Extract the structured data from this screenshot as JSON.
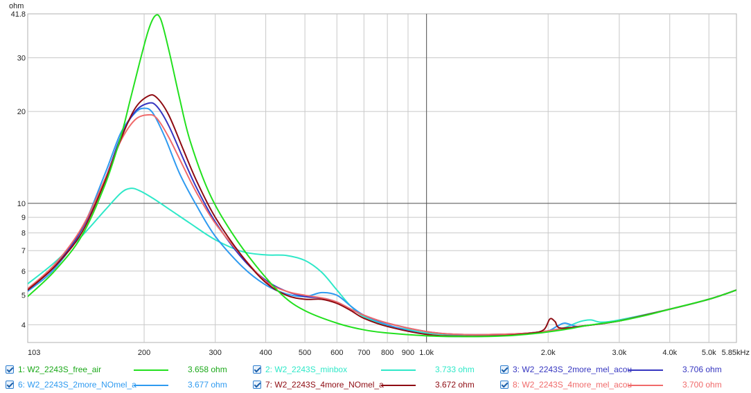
{
  "chart_data": {
    "type": "line",
    "ylabel": "ohm",
    "xlabel": "",
    "xunit": "kHz",
    "xscale": "log",
    "yscale": "log",
    "xlim": [
      103,
      5850
    ],
    "ylim": [
      3.5,
      41.8
    ],
    "x_ticks": [
      {
        "v": 103,
        "label": "103"
      },
      {
        "v": 200,
        "label": "200"
      },
      {
        "v": 300,
        "label": "300"
      },
      {
        "v": 400,
        "label": "400"
      },
      {
        "v": 500,
        "label": "500"
      },
      {
        "v": 600,
        "label": "600"
      },
      {
        "v": 700,
        "label": "700"
      },
      {
        "v": 800,
        "label": "800"
      },
      {
        "v": 900,
        "label": "900"
      },
      {
        "v": 1000,
        "label": "1.0k"
      },
      {
        "v": 2000,
        "label": "2.0k"
      },
      {
        "v": 3000,
        "label": "3.0k"
      },
      {
        "v": 4000,
        "label": "4.0k"
      },
      {
        "v": 5000,
        "label": "5.0k"
      },
      {
        "v": 5850,
        "label": "5.85kHz"
      }
    ],
    "y_ticks": [
      {
        "v": 4,
        "label": "4"
      },
      {
        "v": 5,
        "label": "5"
      },
      {
        "v": 6,
        "label": "6"
      },
      {
        "v": 7,
        "label": "7"
      },
      {
        "v": 8,
        "label": "8"
      },
      {
        "v": 9,
        "label": "9"
      },
      {
        "v": 10,
        "label": "10"
      },
      {
        "v": 20,
        "label": "20"
      },
      {
        "v": 30,
        "label": "30"
      },
      {
        "v": 41.8,
        "label": "41.8"
      }
    ],
    "grid": true,
    "cursor_x": 1000,
    "cursor_y": 10,
    "series": [
      {
        "name": "1: W2_2243S_free_air",
        "value": "3.658 ohm",
        "color": "#22e01e",
        "points": [
          [
            103,
            4.95
          ],
          [
            120,
            6.0
          ],
          [
            140,
            7.8
          ],
          [
            160,
            11.5
          ],
          [
            175,
            16.5
          ],
          [
            185,
            22
          ],
          [
            195,
            29
          ],
          [
            205,
            37
          ],
          [
            213,
            41.2
          ],
          [
            220,
            40
          ],
          [
            230,
            32
          ],
          [
            245,
            22
          ],
          [
            260,
            16
          ],
          [
            290,
            10.8
          ],
          [
            330,
            8.0
          ],
          [
            380,
            6.2
          ],
          [
            440,
            5.0
          ],
          [
            500,
            4.45
          ],
          [
            600,
            4.05
          ],
          [
            700,
            3.85
          ],
          [
            800,
            3.76
          ],
          [
            1000,
            3.68
          ],
          [
            1200,
            3.66
          ],
          [
            1500,
            3.67
          ],
          [
            1800,
            3.73
          ],
          [
            2200,
            3.86
          ],
          [
            2500,
            3.98
          ],
          [
            3000,
            4.12
          ],
          [
            3500,
            4.3
          ],
          [
            4000,
            4.5
          ],
          [
            5000,
            4.85
          ],
          [
            5850,
            5.2
          ]
        ]
      },
      {
        "name": "2: W2_2243S_minbox",
        "value": "3.733 ohm",
        "color": "#2ee8c8",
        "points": [
          [
            103,
            5.45
          ],
          [
            120,
            6.4
          ],
          [
            140,
            7.8
          ],
          [
            160,
            9.5
          ],
          [
            175,
            10.8
          ],
          [
            185,
            11.2
          ],
          [
            195,
            11.0
          ],
          [
            210,
            10.4
          ],
          [
            230,
            9.6
          ],
          [
            260,
            8.6
          ],
          [
            300,
            7.6
          ],
          [
            350,
            6.95
          ],
          [
            400,
            6.78
          ],
          [
            450,
            6.75
          ],
          [
            500,
            6.5
          ],
          [
            550,
            5.95
          ],
          [
            600,
            5.2
          ],
          [
            650,
            4.6
          ],
          [
            700,
            4.25
          ],
          [
            800,
            3.98
          ],
          [
            900,
            3.86
          ],
          [
            1000,
            3.76
          ],
          [
            1200,
            3.7
          ],
          [
            1500,
            3.7
          ],
          [
            1800,
            3.76
          ],
          [
            2000,
            3.82
          ],
          [
            2200,
            3.92
          ],
          [
            2400,
            4.1
          ],
          [
            2550,
            4.15
          ],
          [
            2700,
            4.08
          ],
          [
            3000,
            4.15
          ],
          [
            4000,
            4.5
          ],
          [
            5000,
            4.85
          ],
          [
            5850,
            5.2
          ]
        ]
      },
      {
        "name": "3: W2_2243S_2more_mel_acou",
        "value": "3.706 ohm",
        "color": "#3535c0",
        "points": [
          [
            103,
            5.2
          ],
          [
            120,
            6.2
          ],
          [
            140,
            8.2
          ],
          [
            160,
            12.0
          ],
          [
            175,
            16.5
          ],
          [
            190,
            20.0
          ],
          [
            205,
            21.3
          ],
          [
            215,
            20.8
          ],
          [
            230,
            18.0
          ],
          [
            250,
            14.0
          ],
          [
            270,
            11.2
          ],
          [
            300,
            8.7
          ],
          [
            350,
            6.6
          ],
          [
            400,
            5.6
          ],
          [
            450,
            5.15
          ],
          [
            500,
            4.95
          ],
          [
            550,
            4.9
          ],
          [
            600,
            4.75
          ],
          [
            650,
            4.5
          ],
          [
            700,
            4.3
          ],
          [
            800,
            4.05
          ],
          [
            1000,
            3.8
          ],
          [
            1200,
            3.72
          ],
          [
            1500,
            3.72
          ],
          [
            1800,
            3.76
          ],
          [
            2000,
            3.82
          ],
          [
            2200,
            3.9
          ],
          [
            2500,
            3.98
          ],
          [
            3000,
            4.12
          ],
          [
            4000,
            4.5
          ],
          [
            5000,
            4.85
          ],
          [
            5850,
            5.2
          ]
        ]
      },
      {
        "name": "6: W2_2243S_2more_NOmel_a",
        "value": "3.677 ohm",
        "color": "#2e9af0",
        "points": [
          [
            103,
            5.15
          ],
          [
            120,
            6.1
          ],
          [
            140,
            8.2
          ],
          [
            160,
            12.5
          ],
          [
            175,
            17.0
          ],
          [
            190,
            19.8
          ],
          [
            200,
            20.5
          ],
          [
            210,
            19.8
          ],
          [
            225,
            16.5
          ],
          [
            245,
            12.5
          ],
          [
            270,
            9.8
          ],
          [
            300,
            7.8
          ],
          [
            350,
            6.2
          ],
          [
            400,
            5.4
          ],
          [
            450,
            5.05
          ],
          [
            500,
            4.95
          ],
          [
            550,
            5.1
          ],
          [
            600,
            5.0
          ],
          [
            650,
            4.6
          ],
          [
            700,
            4.3
          ],
          [
            800,
            4.0
          ],
          [
            1000,
            3.72
          ],
          [
            1200,
            3.66
          ],
          [
            1500,
            3.68
          ],
          [
            1800,
            3.74
          ],
          [
            2000,
            3.82
          ],
          [
            2100,
            3.95
          ],
          [
            2200,
            4.05
          ],
          [
            2350,
            3.95
          ],
          [
            2500,
            3.98
          ],
          [
            3000,
            4.12
          ],
          [
            4000,
            4.5
          ],
          [
            5000,
            4.85
          ],
          [
            5850,
            5.2
          ]
        ]
      },
      {
        "name": "7: W2_2243S_4more_NOmel_a",
        "value": "3.672 ohm",
        "color": "#8e0b12",
        "points": [
          [
            103,
            5.2
          ],
          [
            120,
            6.2
          ],
          [
            140,
            8.0
          ],
          [
            160,
            11.8
          ],
          [
            175,
            16.2
          ],
          [
            190,
            20.5
          ],
          [
            205,
            22.5
          ],
          [
            215,
            22.2
          ],
          [
            230,
            19.5
          ],
          [
            250,
            15.0
          ],
          [
            270,
            11.8
          ],
          [
            300,
            9.0
          ],
          [
            350,
            6.7
          ],
          [
            400,
            5.5
          ],
          [
            450,
            5.0
          ],
          [
            500,
            4.85
          ],
          [
            550,
            4.85
          ],
          [
            600,
            4.7
          ],
          [
            650,
            4.45
          ],
          [
            700,
            4.2
          ],
          [
            800,
            3.95
          ],
          [
            1000,
            3.72
          ],
          [
            1200,
            3.67
          ],
          [
            1500,
            3.68
          ],
          [
            1800,
            3.75
          ],
          [
            1950,
            3.85
          ],
          [
            2020,
            4.18
          ],
          [
            2080,
            4.1
          ],
          [
            2150,
            3.9
          ],
          [
            2500,
            3.98
          ],
          [
            3000,
            4.12
          ],
          [
            4000,
            4.5
          ],
          [
            5000,
            4.85
          ],
          [
            5850,
            5.2
          ]
        ]
      },
      {
        "name": "8: W2_2243S_4more_mel_acou",
        "value": "3.700 ohm",
        "color": "#f06a6a",
        "points": [
          [
            103,
            5.25
          ],
          [
            120,
            6.3
          ],
          [
            140,
            8.3
          ],
          [
            160,
            12.0
          ],
          [
            175,
            16.0
          ],
          [
            190,
            18.8
          ],
          [
            205,
            19.5
          ],
          [
            215,
            19.0
          ],
          [
            230,
            16.5
          ],
          [
            250,
            13.2
          ],
          [
            270,
            10.8
          ],
          [
            300,
            8.6
          ],
          [
            350,
            6.7
          ],
          [
            400,
            5.55
          ],
          [
            450,
            5.15
          ],
          [
            500,
            5.0
          ],
          [
            550,
            4.9
          ],
          [
            600,
            4.75
          ],
          [
            650,
            4.5
          ],
          [
            700,
            4.3
          ],
          [
            800,
            4.05
          ],
          [
            1000,
            3.8
          ],
          [
            1200,
            3.72
          ],
          [
            1500,
            3.72
          ],
          [
            1800,
            3.76
          ],
          [
            2000,
            3.82
          ],
          [
            2200,
            3.9
          ],
          [
            2500,
            3.98
          ],
          [
            3000,
            4.12
          ],
          [
            4000,
            4.5
          ],
          [
            5000,
            4.85
          ],
          [
            5850,
            5.2
          ]
        ]
      }
    ]
  }
}
